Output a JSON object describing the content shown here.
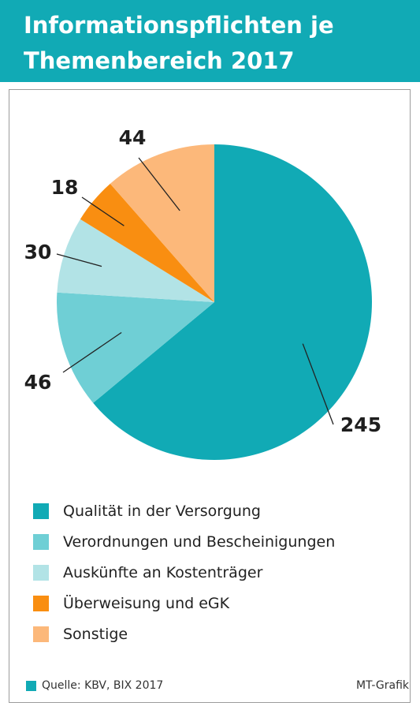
{
  "header": {
    "title_line1": "Informationspflichten je",
    "title_line2": "Themenbereich 2017",
    "background_color": "#11aab5"
  },
  "chart_data": {
    "type": "pie",
    "title": "Informationspflichten je Themenbereich 2017",
    "slices": [
      {
        "label": "Qualität in der Versorgung",
        "value": 245,
        "color": "#11aab5"
      },
      {
        "label": "Verordnungen und Bescheinigungen",
        "value": 46,
        "color": "#6fcfd5"
      },
      {
        "label": "Auskünfte an Kostenträger",
        "value": 30,
        "color": "#b2e3e6"
      },
      {
        "label": "Überweisung und eGK",
        "value": 18,
        "color": "#f98e11"
      },
      {
        "label": "Sonstige",
        "value": 44,
        "color": "#fcb87a"
      }
    ],
    "start": "12 o'clock",
    "direction": "clockwise",
    "data_labels": true,
    "legend_position": "bottom"
  },
  "legend": {
    "items": [
      {
        "label": "Qualität in der Versorgung",
        "color": "#11aab5"
      },
      {
        "label": "Verordnungen und Bescheinigungen",
        "color": "#6fcfd5"
      },
      {
        "label": "Auskünfte an Kostenträger",
        "color": "#b2e3e6"
      },
      {
        "label": "Überweisung und eGK",
        "color": "#f98e11"
      },
      {
        "label": "Sonstige",
        "color": "#fcb87a"
      }
    ]
  },
  "footer": {
    "source": "Quelle: KBV, BIX 2017",
    "credit": "MT-Grafik",
    "source_color": "#11aab5"
  }
}
